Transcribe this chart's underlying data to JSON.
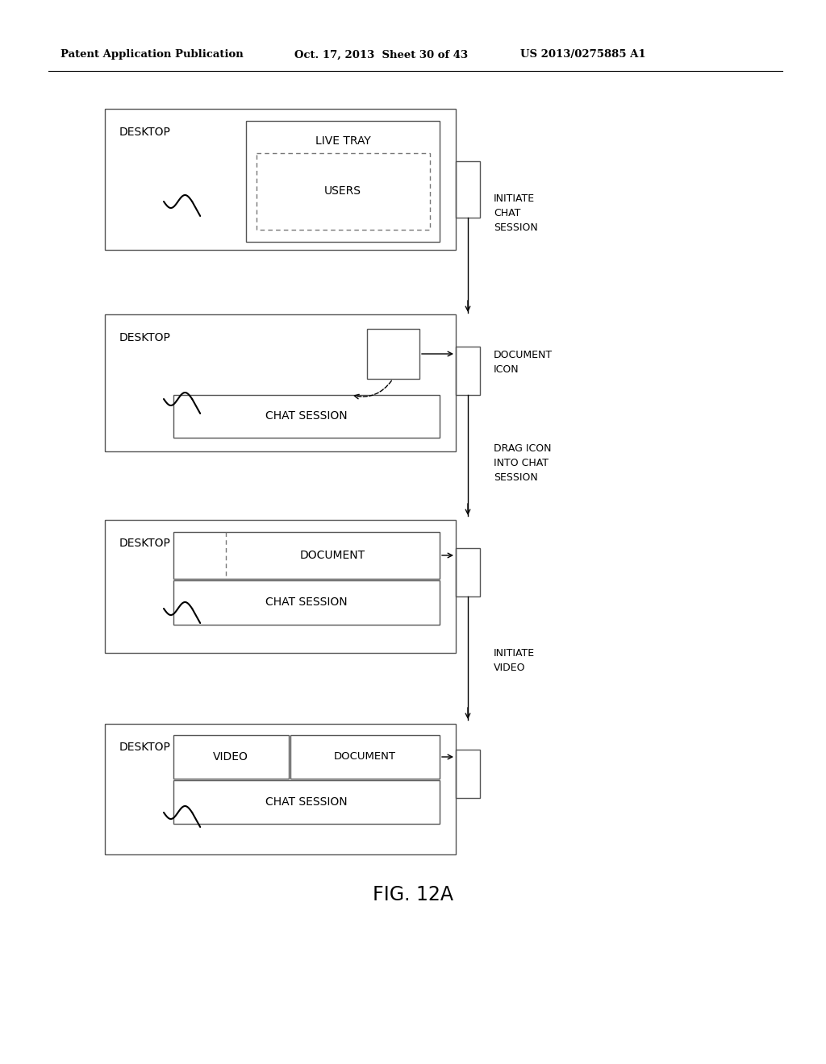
{
  "bg_color": "#ffffff",
  "header_left": "Patent Application Publication",
  "header_mid": "Oct. 17, 2013  Sheet 30 of 43",
  "header_right": "US 2013/0275885 A1",
  "fig_label": "FIG. 12A"
}
